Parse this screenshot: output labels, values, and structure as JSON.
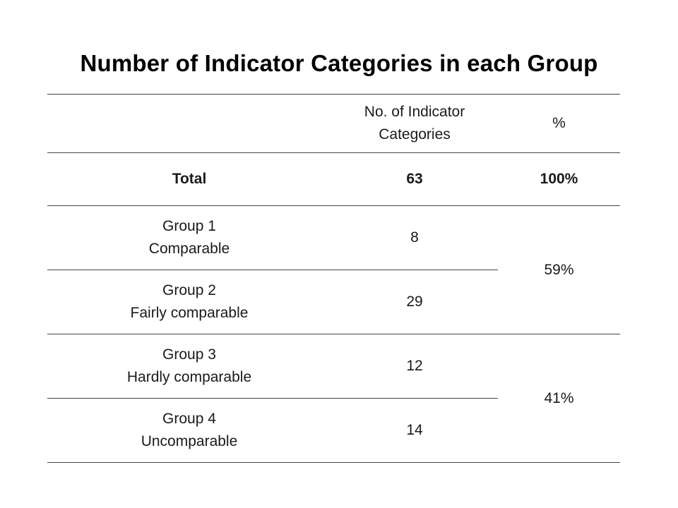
{
  "title": "Number of Indicator Categories in each Group",
  "chart_data": {
    "type": "table",
    "title": "Number of Indicator Categories in each Group",
    "columns": [
      "",
      "No. of Indicator Categories",
      "%"
    ],
    "header": {
      "count_line1": "No. of  Indicator",
      "count_line2": "Categories",
      "pct": "%"
    },
    "total": {
      "label": "Total",
      "count": "63",
      "pct": "100%"
    },
    "rows": [
      {
        "label_line1": "Group 1",
        "label_line2": "Comparable",
        "count": "8"
      },
      {
        "label_line1": "Group 2",
        "label_line2": "Fairly comparable",
        "count": "29"
      },
      {
        "label_line1": "Group 3",
        "label_line2": "Hardly comparable",
        "count": "12"
      },
      {
        "label_line1": "Group 4",
        "label_line2": "Uncomparable",
        "count": "14"
      }
    ],
    "merged_pct": [
      {
        "rows": [
          "Group 1",
          "Group 2"
        ],
        "value": "59%"
      },
      {
        "rows": [
          "Group 3",
          "Group 4"
        ],
        "value": "41%"
      }
    ]
  }
}
